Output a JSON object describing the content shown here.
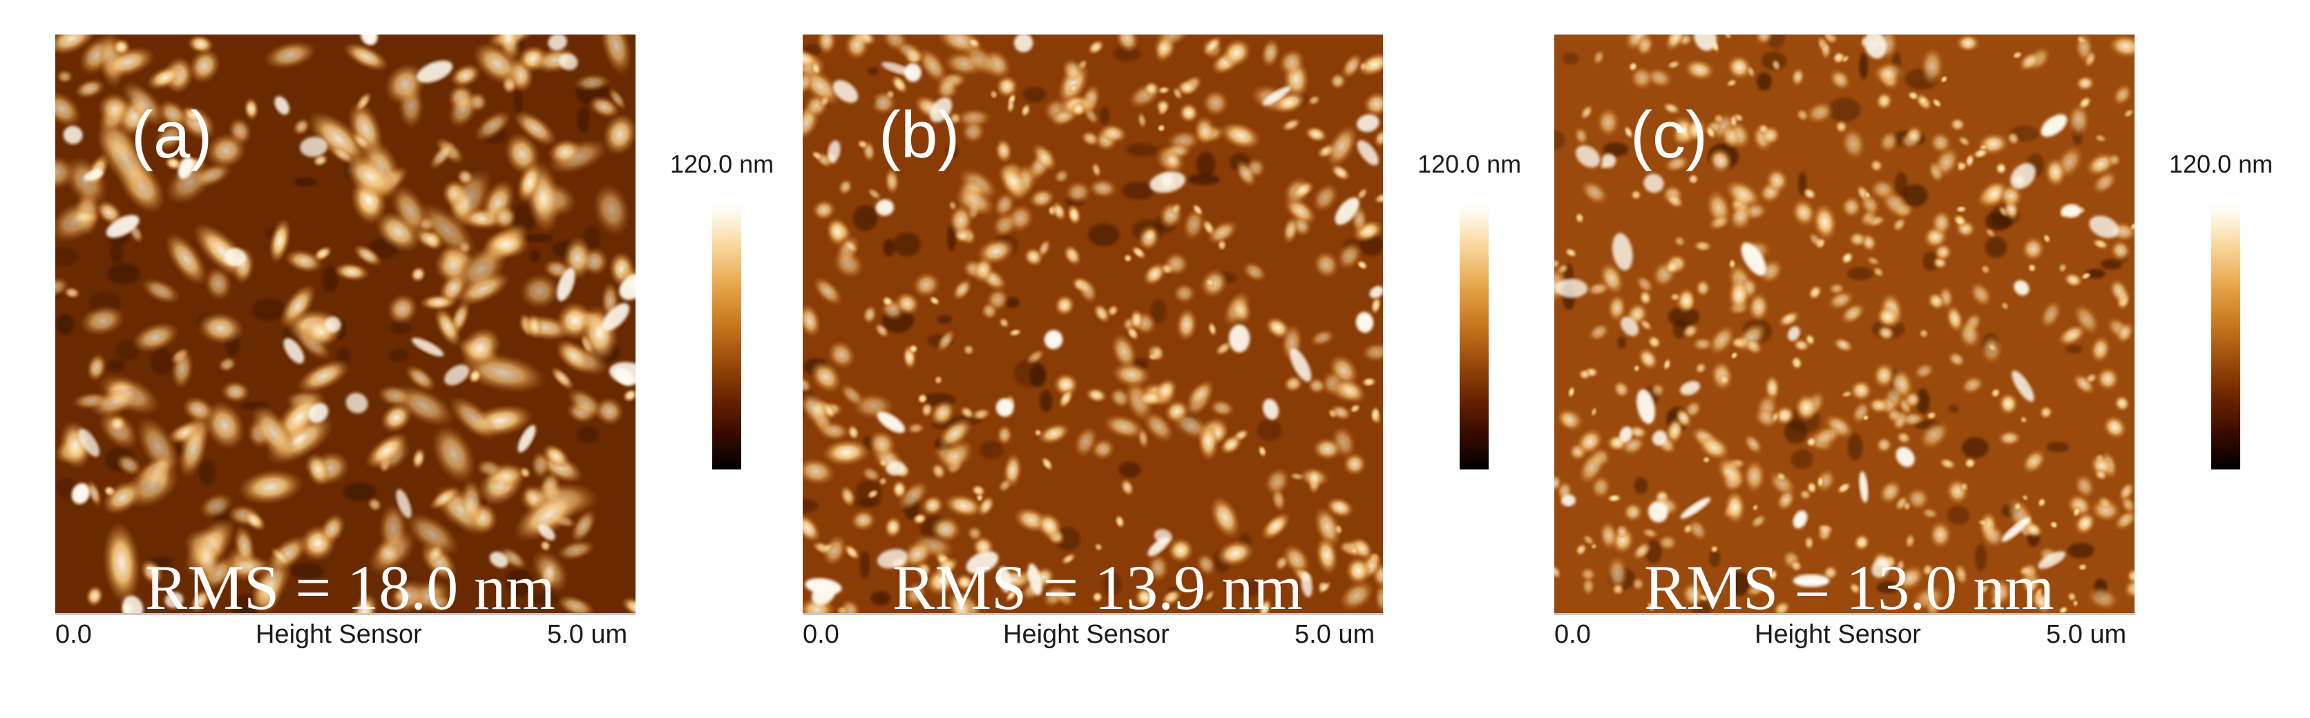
{
  "figure": {
    "scale_max_label": "120.0 nm",
    "panels": [
      {
        "label": "(a)",
        "rms": "RMS = 18.0 nm",
        "axis_min": "0.0",
        "axis_title": "Height Sensor",
        "axis_max": "5.0 um",
        "scale_label": "120.0 nm"
      },
      {
        "label": "(b)",
        "rms": "RMS = 13.9 nm",
        "axis_min": "0.0",
        "axis_title": "Height Sensor",
        "axis_max": "5.0 um",
        "scale_label": "120.0 nm"
      },
      {
        "label": "(c)",
        "rms": "RMS = 13.0 nm",
        "axis_min": "0.0",
        "axis_title": "Height Sensor",
        "axis_max": "5.0 um",
        "scale_label": "120.0 nm"
      }
    ]
  },
  "colors": {
    "substrate": "#6a2a00",
    "mid": "#b8631a",
    "grain": "#f5c67a",
    "peak": "#fffaf0"
  }
}
